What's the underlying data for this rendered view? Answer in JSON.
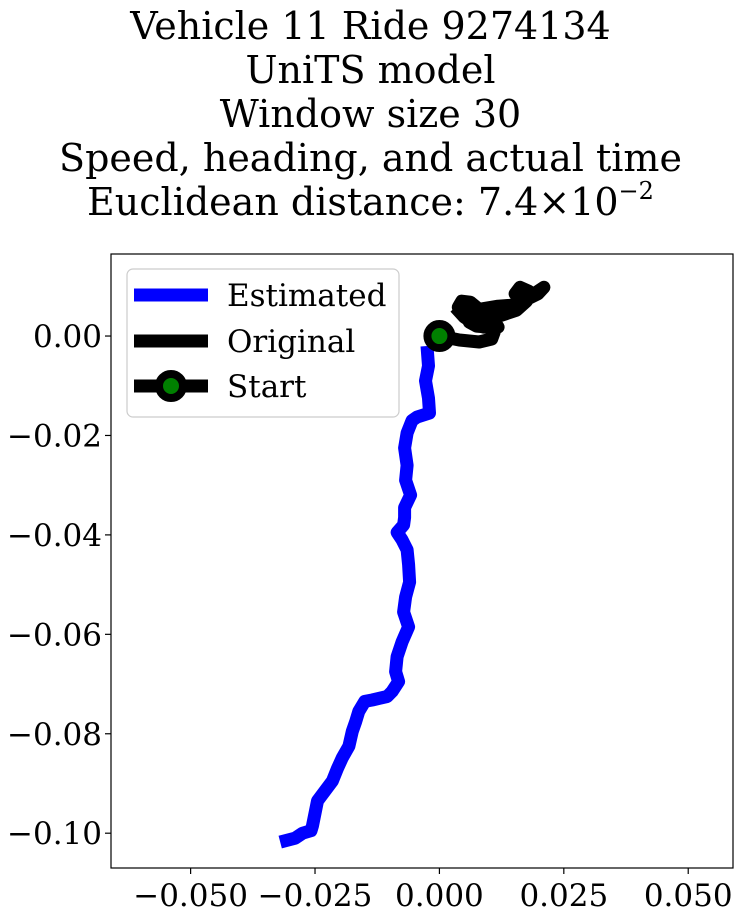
{
  "chart_data": {
    "type": "line",
    "title_lines": [
      "Vehicle 11 Ride 9274134",
      "UniTS model",
      "Window size 30",
      "Speed, heading, and actual time"
    ],
    "title_metric": {
      "label": "Euclidean distance: ",
      "mantissa": "7.4",
      "times": "×",
      "base": "10",
      "exponent": "−2"
    },
    "xlabel": "",
    "ylabel": "",
    "xlim": [
      -0.066,
      0.059
    ],
    "ylim": [
      -0.107,
      0.0165
    ],
    "x_ticks": [
      -0.05,
      -0.025,
      0.0,
      0.025,
      0.05
    ],
    "x_tick_labels": [
      "−0.050",
      "−0.025",
      "0.000",
      "0.025",
      "0.050"
    ],
    "y_ticks": [
      0.0,
      -0.02,
      -0.04,
      -0.06,
      -0.08,
      -0.1
    ],
    "y_tick_labels": [
      "0.00",
      "−0.02",
      "−0.04",
      "−0.06",
      "−0.08",
      "−0.10"
    ],
    "grid": false,
    "legend_placement": "top-left",
    "series": [
      {
        "name": "Estimated",
        "color": "#0000ff",
        "points": [
          [
            -0.0025,
            -0.002
          ],
          [
            -0.0022,
            -0.006
          ],
          [
            -0.0028,
            -0.009
          ],
          [
            -0.0022,
            -0.0125
          ],
          [
            -0.002,
            -0.0155
          ],
          [
            -0.0045,
            -0.0163
          ],
          [
            -0.0055,
            -0.017
          ],
          [
            -0.0065,
            -0.0195
          ],
          [
            -0.007,
            -0.0225
          ],
          [
            -0.0065,
            -0.026
          ],
          [
            -0.0068,
            -0.029
          ],
          [
            -0.0058,
            -0.032
          ],
          [
            -0.007,
            -0.0345
          ],
          [
            -0.007,
            -0.0365
          ],
          [
            -0.0072,
            -0.038
          ],
          [
            -0.0085,
            -0.0395
          ],
          [
            -0.0075,
            -0.041
          ],
          [
            -0.0065,
            -0.043
          ],
          [
            -0.0062,
            -0.046
          ],
          [
            -0.006,
            -0.0495
          ],
          [
            -0.0068,
            -0.0525
          ],
          [
            -0.0072,
            -0.0555
          ],
          [
            -0.0062,
            -0.0585
          ],
          [
            -0.0075,
            -0.0615
          ],
          [
            -0.0085,
            -0.0645
          ],
          [
            -0.0088,
            -0.0675
          ],
          [
            -0.0082,
            -0.0695
          ],
          [
            -0.0095,
            -0.0715
          ],
          [
            -0.0105,
            -0.0725
          ],
          [
            -0.0135,
            -0.0732
          ],
          [
            -0.015,
            -0.0735
          ],
          [
            -0.0162,
            -0.0755
          ],
          [
            -0.0168,
            -0.0775
          ],
          [
            -0.0175,
            -0.0795
          ],
          [
            -0.0182,
            -0.0825
          ],
          [
            -0.0195,
            -0.0848
          ],
          [
            -0.0205,
            -0.087
          ],
          [
            -0.0215,
            -0.0895
          ],
          [
            -0.023,
            -0.0915
          ],
          [
            -0.0245,
            -0.0935
          ],
          [
            -0.025,
            -0.096
          ],
          [
            -0.0255,
            -0.0985
          ],
          [
            -0.0258,
            -0.0995
          ],
          [
            -0.0275,
            -0.1
          ],
          [
            -0.029,
            -0.101
          ],
          [
            -0.032,
            -0.1018
          ]
        ]
      },
      {
        "name": "Original",
        "color": "#000000",
        "points": [
          [
            0.0,
            0.0
          ],
          [
            0.004,
            -0.0008
          ],
          [
            0.008,
            -0.0012
          ],
          [
            0.0105,
            -0.0006
          ],
          [
            0.011,
            0.0008
          ],
          [
            0.0098,
            0.0018
          ],
          [
            0.0075,
            0.002
          ],
          [
            0.006,
            0.0028
          ],
          [
            0.0065,
            0.0045
          ],
          [
            0.0088,
            0.0055
          ],
          [
            0.0118,
            0.006
          ],
          [
            0.0145,
            0.0062
          ],
          [
            0.0168,
            0.0072
          ],
          [
            0.0195,
            0.0088
          ],
          [
            0.021,
            0.0098
          ],
          [
            0.0198,
            0.0085
          ],
          [
            0.0172,
            0.0072
          ],
          [
            0.0152,
            0.0085
          ],
          [
            0.0162,
            0.0098
          ],
          [
            0.018,
            0.009
          ],
          [
            0.0175,
            0.007
          ],
          [
            0.0155,
            0.0052
          ],
          [
            0.0125,
            0.0042
          ],
          [
            0.0098,
            0.0042
          ],
          [
            0.0078,
            0.0055
          ],
          [
            0.0062,
            0.0068
          ],
          [
            0.0045,
            0.007
          ],
          [
            0.0038,
            0.0058
          ],
          [
            0.0052,
            0.0048
          ],
          [
            0.0082,
            0.0036
          ],
          [
            0.0112,
            0.0028
          ],
          [
            0.0118,
            0.0018
          ],
          [
            0.0088,
            0.0018
          ],
          [
            0.0065,
            0.0028
          ],
          [
            0.005,
            0.0038
          ],
          [
            0.0032,
            0.0058
          ]
        ]
      }
    ],
    "start": {
      "name": "Start",
      "x": 0.0,
      "y": 0.0,
      "edge_color": "#000000",
      "face_color": "#008000"
    }
  }
}
